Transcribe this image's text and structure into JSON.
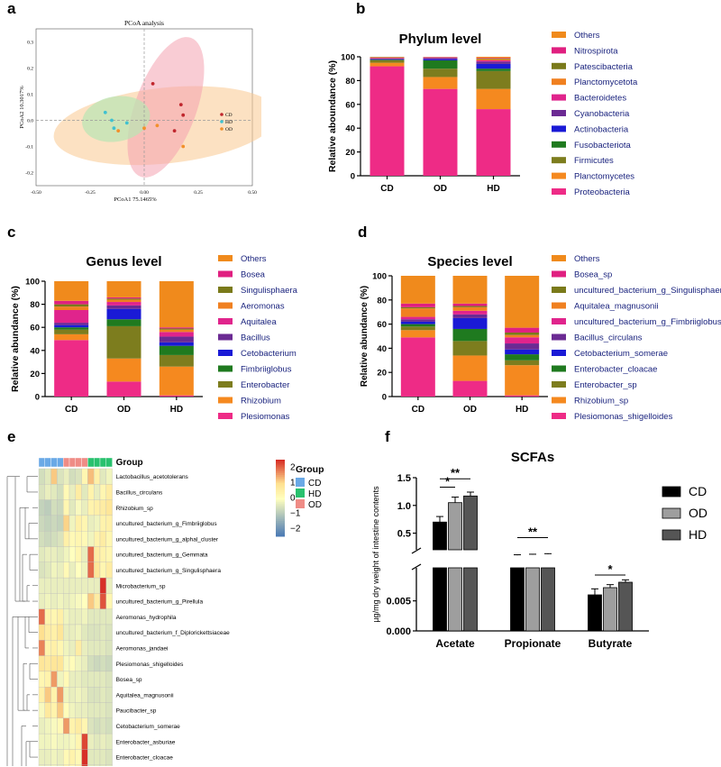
{
  "panels": {
    "a": "a",
    "b": "b",
    "c": "c",
    "d": "d",
    "e": "e",
    "f": "f"
  },
  "chart_data": [
    {
      "id": "a",
      "type": "scatter",
      "title": "PCoA analysis",
      "xlabel": "PCoA1 75.1465%",
      "ylabel": "PCoA2 10.3017%",
      "xlim": [
        -0.5,
        0.5
      ],
      "ylim": [
        -0.25,
        0.35
      ],
      "xticks": [
        "-0.50",
        "-0.25",
        "0.00",
        "0.25",
        "0.50"
      ],
      "yticks": [
        "0.3",
        "0.2",
        "0.1",
        "0.0",
        "-0.1",
        "-0.2"
      ],
      "legend": [
        "CD",
        "HD",
        "OD"
      ],
      "colors": {
        "CD": "#c0262d",
        "HD": "#3fc1d0",
        "OD": "#f2902b"
      },
      "ellipse_colors": {
        "CD": "#f4a3b0",
        "HD": "#b9e5b3",
        "OD": "#f9c98f"
      },
      "series": [
        {
          "name": "CD",
          "points": [
            [
              0.04,
              0.14
            ],
            [
              0.17,
              0.06
            ],
            [
              0.18,
              0.02
            ],
            [
              0.14,
              -0.04
            ]
          ]
        },
        {
          "name": "HD",
          "points": [
            [
              -0.18,
              0.03
            ],
            [
              -0.15,
              0.0
            ],
            [
              -0.08,
              -0.01
            ],
            [
              -0.14,
              -0.03
            ]
          ]
        },
        {
          "name": "OD",
          "points": [
            [
              -0.12,
              -0.04
            ],
            [
              0.0,
              -0.03
            ],
            [
              0.06,
              -0.02
            ],
            [
              0.18,
              -0.1
            ]
          ]
        }
      ]
    },
    {
      "id": "b",
      "type": "bar",
      "stacked": true,
      "title": "Phylum level",
      "ylabel": "Relative aboundance (%)",
      "ylim": [
        0,
        100
      ],
      "yticks": [
        "0",
        "20",
        "40",
        "60",
        "80",
        "100"
      ],
      "categories": [
        "CD",
        "OD",
        "HD"
      ],
      "series": [
        {
          "name": "Proteobacteria",
          "color": "#ee2b86",
          "values": [
            92,
            73,
            56
          ]
        },
        {
          "name": "Planctomycetes",
          "color": "#f5891f",
          "values": [
            3,
            10,
            17
          ]
        },
        {
          "name": "Firmicutes",
          "color": "#7d7d1e",
          "values": [
            2,
            7,
            15
          ]
        },
        {
          "name": "Fusobacteriota",
          "color": "#1f7a1f",
          "values": [
            0.5,
            7,
            2
          ]
        },
        {
          "name": "Actinobacteria",
          "color": "#1a1ad6",
          "values": [
            0.5,
            1,
            4
          ]
        },
        {
          "name": "Cyanobacteria",
          "color": "#6b2a93",
          "values": [
            0.5,
            1,
            2
          ]
        },
        {
          "name": "Bacteroidetes",
          "color": "#e0248c",
          "values": [
            0.5,
            0.5,
            1
          ]
        },
        {
          "name": "Planctomycetota",
          "color": "#f08020",
          "values": [
            0.3,
            0.3,
            1
          ]
        },
        {
          "name": "Patescibacteria",
          "color": "#7a7a1a",
          "values": [
            0.3,
            0.1,
            0.5
          ]
        },
        {
          "name": "Nitrospirota",
          "color": "#e02080",
          "values": [
            0.2,
            0.1,
            0.5
          ]
        },
        {
          "name": "Others",
          "color": "#f08a1c",
          "values": [
            0.2,
            0,
            1
          ]
        }
      ]
    },
    {
      "id": "c",
      "type": "bar",
      "stacked": true,
      "title": "Genus level",
      "ylabel": "Relative abundance (%)",
      "ylim": [
        0,
        100
      ],
      "yticks": [
        "0",
        "20",
        "40",
        "60",
        "80",
        "100"
      ],
      "categories": [
        "CD",
        "OD",
        "HD"
      ],
      "series": [
        {
          "name": "Plesiomonas",
          "color": "#ee2b86",
          "values": [
            49,
            13,
            1
          ]
        },
        {
          "name": "Rhizobium",
          "color": "#f5891f",
          "values": [
            5,
            20,
            25
          ]
        },
        {
          "name": "Enterobacter",
          "color": "#7d7d1e",
          "values": [
            4,
            28,
            10
          ]
        },
        {
          "name": "Fimbriiglobus",
          "color": "#1f7a1f",
          "values": [
            2,
            6,
            8
          ]
        },
        {
          "name": "Cetobacterium",
          "color": "#1a1ad6",
          "values": [
            2,
            9,
            3
          ]
        },
        {
          "name": "Bacillus",
          "color": "#6b2a93",
          "values": [
            2,
            3,
            5
          ]
        },
        {
          "name": "Aquitalea",
          "color": "#e0248c",
          "values": [
            11,
            3,
            4
          ]
        },
        {
          "name": "Aeromonas",
          "color": "#f08020",
          "values": [
            3,
            2,
            2
          ]
        },
        {
          "name": "Singulisphaera",
          "color": "#7a7a1a",
          "values": [
            2,
            1,
            1
          ]
        },
        {
          "name": "Bosea",
          "color": "#e02080",
          "values": [
            3,
            1,
            1
          ]
        },
        {
          "name": "Others",
          "color": "#f08a1c",
          "values": [
            17,
            14,
            40
          ]
        }
      ]
    },
    {
      "id": "d",
      "type": "bar",
      "stacked": true,
      "title": "Species level",
      "ylabel": "Relative abundance (%)",
      "ylim": [
        0,
        100
      ],
      "yticks": [
        "0",
        "20",
        "40",
        "60",
        "80",
        "100"
      ],
      "categories": [
        "CD",
        "OD",
        "HD"
      ],
      "series": [
        {
          "name": "Plesiomonas_shigelloides",
          "color": "#ee2b86",
          "values": [
            49,
            13,
            1
          ]
        },
        {
          "name": "Rhizobium_sp",
          "color": "#f5891f",
          "values": [
            6,
            21,
            25
          ]
        },
        {
          "name": "Enterobacter_sp",
          "color": "#7d7d1e",
          "values": [
            3,
            12,
            4
          ]
        },
        {
          "name": "Enterobacter_cloacae",
          "color": "#1f7a1f",
          "values": [
            2,
            10,
            5
          ]
        },
        {
          "name": "Cetobacterium_somerae",
          "color": "#1a1ad6",
          "values": [
            2,
            9,
            4
          ]
        },
        {
          "name": "Bacillus_circulans",
          "color": "#6b2a93",
          "values": [
            2,
            3,
            5
          ]
        },
        {
          "name": "uncultured_bacterium_g_Fimbriiglobus",
          "color": "#e0248c",
          "values": [
            2,
            3,
            5
          ]
        },
        {
          "name": "Aquitalea_magnusonii",
          "color": "#f08020",
          "values": [
            7,
            3,
            2
          ]
        },
        {
          "name": "uncultured_bacterium_g_Singulisphaera",
          "color": "#7a7a1a",
          "values": [
            1,
            1,
            2
          ]
        },
        {
          "name": "Bosea_sp",
          "color": "#e02080",
          "values": [
            3,
            2,
            4
          ]
        },
        {
          "name": "Others",
          "color": "#f08a1c",
          "values": [
            23,
            23,
            43
          ]
        }
      ]
    },
    {
      "id": "e",
      "type": "heatmap",
      "legend_title": "Group",
      "top_label": "Group",
      "groups": [
        {
          "name": "CD",
          "color": "#6aa9e6"
        },
        {
          "name": "HD",
          "color": "#29c16e"
        },
        {
          "name": "OD",
          "color": "#ef8c86"
        }
      ],
      "colorbar_ticks": [
        "2",
        "1",
        "0",
        "−1",
        "−2"
      ],
      "column_groups": [
        "CD",
        "CD",
        "CD",
        "CD",
        "OD",
        "OD",
        "OD",
        "OD",
        "HD",
        "HD",
        "HD",
        "HD"
      ],
      "column_group_labels": [
        "CD",
        "OD",
        "HD"
      ],
      "rows": [
        "Lactobacillus_acetotolerans",
        "Bacillus_circulans",
        "Rhizobium_sp",
        "uncultured_bacterium_g_Fimbriiglobus",
        "uncultured_bacterium_g_alphal_cluster",
        "uncultured_bacterium_g_Gemmata",
        "uncultured_bacterium_g_Singulisphaera",
        "Microbacterium_sp",
        "uncultured_bacterium_g_Pirellula",
        "Aeromonas_hydrophila",
        "uncultured_bacterium_f_Diplorickettsiaceae",
        "Aeromonas_jandaei",
        "Plesiomonas_shigelloides",
        "Bosea_sp",
        "Aquitalea_magnusonii",
        "Paucibacter_sp",
        "Cetobacterium_somerae",
        "Enterobacter_asburiae",
        "Enterobacter_cloacae",
        "Enterobacter_sp"
      ],
      "values": [
        [
          -0.6,
          -0.4,
          1.2,
          -0.5,
          -0.3,
          -0.6,
          -0.5,
          0.3,
          1.3,
          0.5,
          -0.4,
          -0.2
        ],
        [
          -0.5,
          -0.3,
          -0.4,
          -0.6,
          0.2,
          -0.3,
          0.6,
          -0.4,
          0.4,
          -0.3,
          0.3,
          0.6
        ],
        [
          -0.8,
          -0.9,
          -0.6,
          -0.7,
          0.3,
          -0.4,
          -0.1,
          -0.3,
          0.4,
          0.5,
          0.6,
          0.8
        ],
        [
          -0.7,
          -0.8,
          -0.7,
          -0.8,
          1.1,
          -0.2,
          0.5,
          0.3,
          -0.3,
          -0.2,
          0.4,
          0.5
        ],
        [
          -0.6,
          -0.7,
          -0.6,
          -0.5,
          0.5,
          0.2,
          0.3,
          0.2,
          -0.2,
          0.4,
          0.6,
          0.3
        ],
        [
          -0.4,
          -0.3,
          -0.3,
          -0.4,
          -0.2,
          0.0,
          0.3,
          -0.3,
          2.0,
          0.6,
          0.4,
          0.3
        ],
        [
          -0.5,
          -0.4,
          -0.2,
          -0.3,
          0.2,
          -0.3,
          0.0,
          -0.2,
          2.0,
          0.8,
          0.3,
          0.6
        ],
        [
          -0.3,
          -0.3,
          -0.3,
          -0.3,
          -0.3,
          -0.3,
          -0.3,
          -0.3,
          -0.3,
          -0.3,
          2.5,
          -0.3
        ],
        [
          -0.3,
          -0.2,
          -0.3,
          -0.2,
          -0.3,
          -0.2,
          -0.1,
          0.0,
          1.2,
          0.6,
          2.2,
          0.3
        ],
        [
          2.0,
          0.4,
          0.3,
          0.5,
          -0.2,
          -0.3,
          -0.3,
          -0.2,
          -0.4,
          -0.4,
          -0.4,
          -0.4
        ],
        [
          1.0,
          0.6,
          0.5,
          0.8,
          -0.3,
          -0.3,
          -0.2,
          -0.4,
          -0.5,
          -0.5,
          -0.4,
          -0.5
        ],
        [
          1.8,
          0.4,
          0.5,
          0.3,
          -0.2,
          -0.3,
          0.6,
          -0.3,
          -0.4,
          -0.4,
          -0.4,
          -0.5
        ],
        [
          0.8,
          0.7,
          0.8,
          0.8,
          -0.1,
          0.1,
          -0.2,
          -0.3,
          -0.6,
          -0.7,
          -0.6,
          -0.7
        ],
        [
          0.3,
          0.4,
          1.6,
          -0.2,
          0.2,
          -0.3,
          -0.3,
          -0.4,
          -0.4,
          -0.4,
          -0.4,
          -0.5
        ],
        [
          0.5,
          1.2,
          0.4,
          1.6,
          -0.2,
          -0.3,
          -0.2,
          -0.3,
          -0.5,
          -0.5,
          -0.4,
          -0.5
        ],
        [
          -0.1,
          0.7,
          0.4,
          1.2,
          0.1,
          -0.2,
          -0.3,
          -0.3,
          -0.4,
          -0.4,
          -0.4,
          -0.5
        ],
        [
          -0.3,
          -0.2,
          -0.1,
          0.2,
          1.6,
          0.4,
          0.6,
          0.3,
          -0.5,
          -0.6,
          -0.5,
          -0.6
        ],
        [
          -0.2,
          -0.2,
          -0.1,
          -0.2,
          -0.2,
          -0.1,
          0.3,
          2.3,
          -0.3,
          -0.4,
          -0.3,
          -0.4
        ],
        [
          -0.3,
          -0.3,
          -0.2,
          -0.3,
          0.2,
          0.4,
          0.2,
          2.5,
          -0.4,
          -0.4,
          -0.4,
          -0.5
        ],
        [
          -0.3,
          -0.3,
          -0.2,
          -0.3,
          0.4,
          0.2,
          0.5,
          2.4,
          -0.4,
          -0.4,
          -0.4,
          -0.4
        ]
      ]
    },
    {
      "id": "f",
      "type": "bar",
      "title": "SCFAs",
      "ylabel": "µg/mg dry weight of intestine contents",
      "yticks_upper": [
        "1.5",
        "1.0",
        "0.5"
      ],
      "yticks_lower": [
        "0.005",
        "0.000"
      ],
      "ylim_upper": [
        0.2,
        1.5
      ],
      "ylim_lower": [
        0,
        0.0105
      ],
      "categories": [
        "Acetate",
        "Propionate",
        "Butyrate"
      ],
      "series": [
        {
          "name": "CD",
          "color": "#000000",
          "values": [
            0.7,
            0.1,
            0.006
          ]
        },
        {
          "name": "OD",
          "color": "#9e9e9e",
          "values": [
            1.05,
            0.11,
            0.0072
          ]
        },
        {
          "name": "HD",
          "color": "#555555",
          "values": [
            1.17,
            0.12,
            0.0081
          ]
        }
      ],
      "errors": [
        [
          0.1,
          0.01,
          0.001
        ],
        [
          0.1,
          0.01,
          0.0005
        ],
        [
          0.07,
          0.01,
          0.0004
        ]
      ],
      "significance": [
        {
          "label": "*"
        },
        {
          "label": "**"
        },
        {
          "label": "**"
        },
        {
          "label": "*"
        }
      ]
    }
  ]
}
